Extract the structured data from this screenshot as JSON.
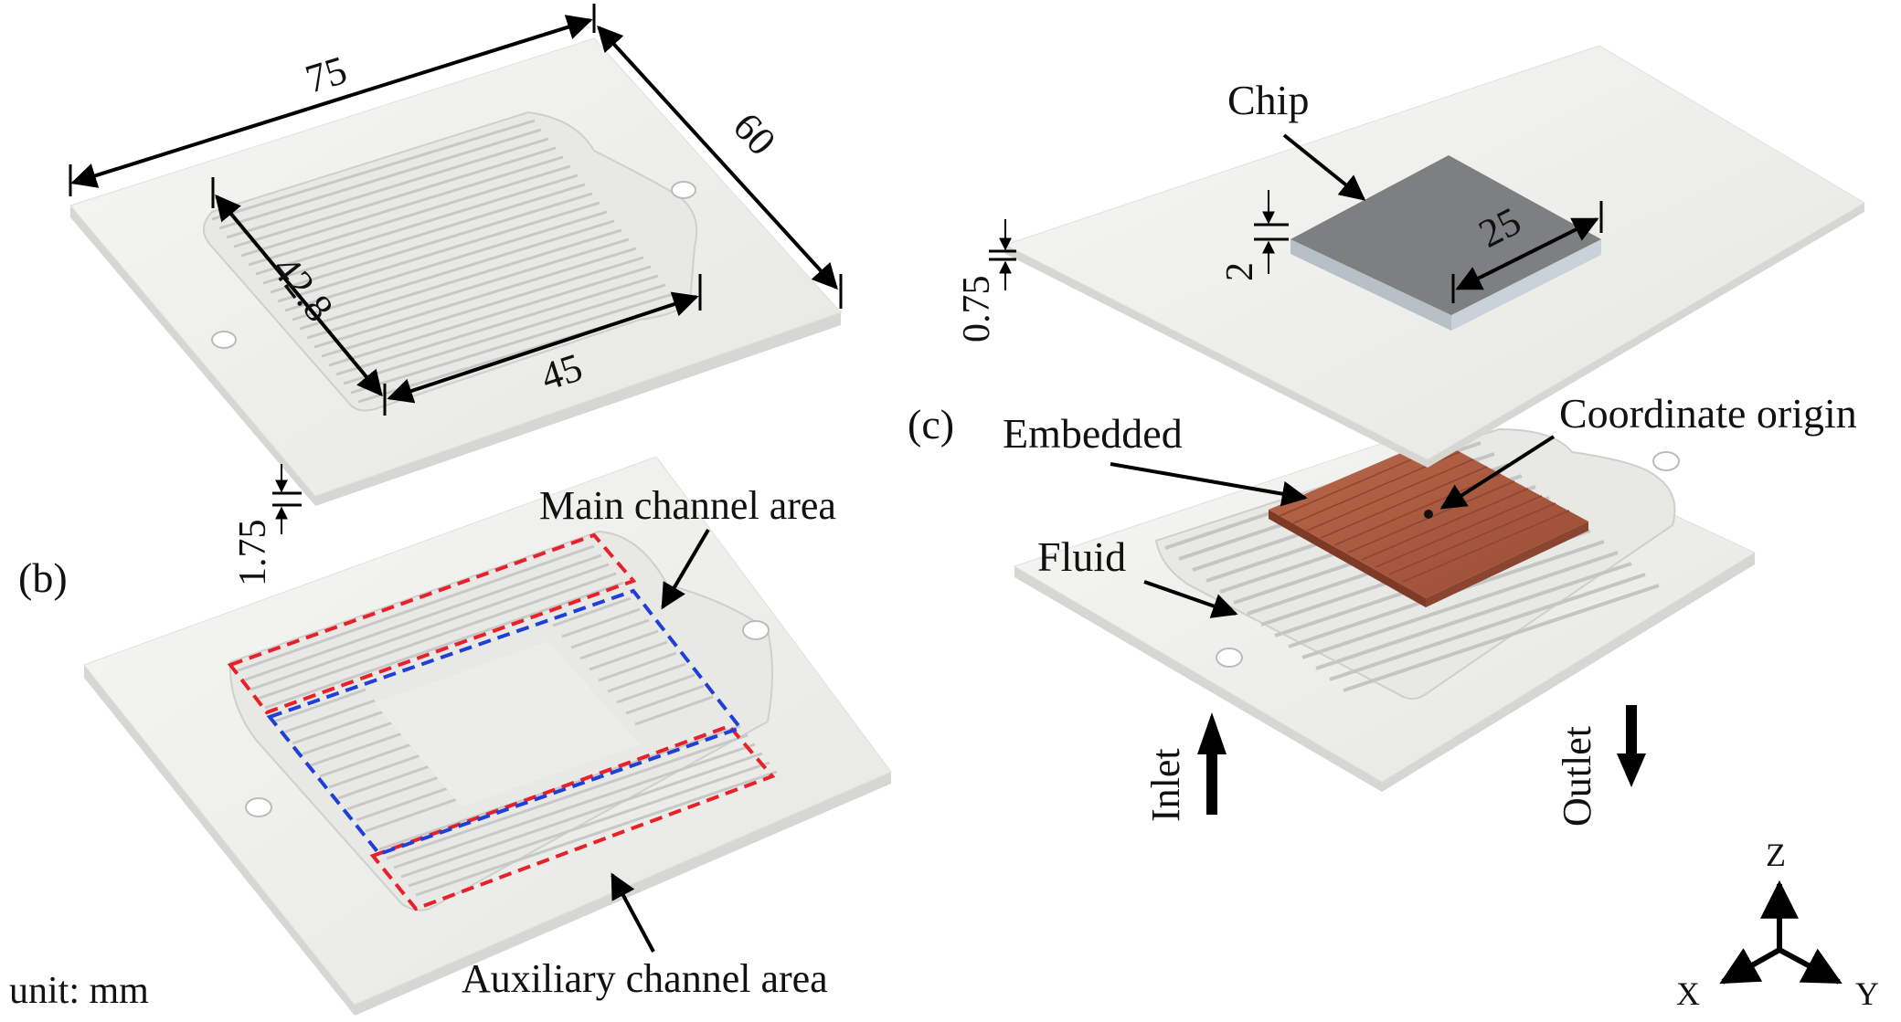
{
  "panels": {
    "a": {
      "dimensions": {
        "length": "75",
        "width": "60",
        "channel_length": "42.8",
        "channel_width": "45",
        "plate_thickness": "1.75"
      }
    },
    "b": {
      "label": "(b)",
      "main_channel_label": "Main channel area",
      "auxiliary_channel_label": "Auxiliary channel area",
      "unit_label": "unit: mm"
    },
    "c": {
      "label": "(c)",
      "chip_label": "Chip",
      "chip_size": "25",
      "chip_thickness": "2",
      "lid_thickness": "0.75",
      "embedded_label": "Embedded",
      "origin_label": "Coordinate origin",
      "fluid_label": "Fluid",
      "inlet_label": "Inlet",
      "outlet_label": "Outlet",
      "axes": {
        "z": "Z",
        "x": "X",
        "y": "Y"
      }
    }
  },
  "colors": {
    "plate": "#efefec",
    "plate_edge": "#d4d4d0",
    "channel_groove": "#c9cbcb",
    "chip_top": "#7d7f80",
    "chip_side": "#c8d0d6",
    "heat_sink": "#a9573c",
    "main_box": "#1f3fd6",
    "aux_box": "#e8202a",
    "arrow": "#000000"
  },
  "icons": {
    "inlet_arrow": "arrow-up-icon",
    "outlet_arrow": "arrow-down-icon",
    "axis_triad": "coordinate-axes-icon"
  }
}
